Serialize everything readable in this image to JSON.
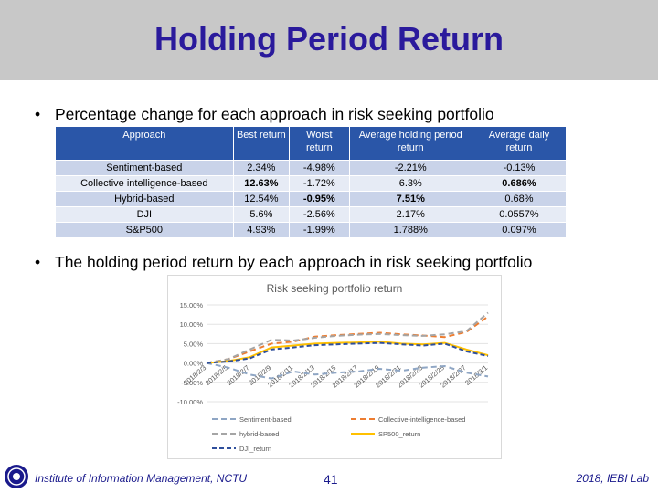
{
  "slide": {
    "title": "Holding Period Return",
    "bullet1": "Percentage change for each approach in risk seeking portfolio",
    "bullet2": "The holding period return by each approach in risk seeking portfolio",
    "bullet_glyph": "•"
  },
  "table": {
    "headers": [
      "Approach",
      "Best return",
      "Worst return",
      "Average holding period return",
      "Average daily return"
    ],
    "rows": [
      [
        "Sentiment-based",
        "2.34%",
        "-4.98%",
        "-2.21%",
        "-0.13%"
      ],
      [
        "Collective intelligence-based",
        "12.63%",
        "-1.72%",
        "6.3%",
        "0.686%"
      ],
      [
        "Hybrid-based",
        "12.54%",
        "-0.95%",
        "7.51%",
        "0.68%"
      ],
      [
        "DJI",
        "5.6%",
        "-2.56%",
        "2.17%",
        "0.0557%"
      ],
      [
        "S&P500",
        "4.93%",
        "-1.99%",
        "1.788%",
        "0.097%"
      ]
    ]
  },
  "chart_data": {
    "type": "line",
    "title": "Risk seeking portfolio return",
    "ylim": [
      -0.1,
      0.15
    ],
    "yticks": [
      "15.00%",
      "10.00%",
      "5.00%",
      "0.00%",
      "-5.00%",
      "-10.00%"
    ],
    "x": [
      "2018/2/3",
      "2018/2/5",
      "2018/2/7",
      "2018/2/9",
      "2018/2/11",
      "2018/2/13",
      "2018/2/15",
      "2018/2/17",
      "2018/2/19",
      "2018/2/21",
      "2018/2/23",
      "2018/2/25",
      "2018/2/27",
      "2018/3/1"
    ],
    "series": [
      {
        "name": "Sentiment-based",
        "color": "#8fa6c4",
        "dash": "6,4",
        "values": [
          0.0,
          -0.012,
          -0.03,
          -0.04,
          -0.022,
          -0.03,
          -0.025,
          -0.022,
          -0.015,
          -0.02,
          -0.012,
          -0.008,
          -0.025,
          -0.035
        ]
      },
      {
        "name": "Collective-intelligence-based",
        "color": "#ed7d31",
        "dash": "6,4",
        "values": [
          0.0,
          0.01,
          0.03,
          0.05,
          0.055,
          0.068,
          0.072,
          0.075,
          0.078,
          0.074,
          0.071,
          0.067,
          0.08,
          0.12
        ]
      },
      {
        "name": "hybrid-based",
        "color": "#a5a5a5",
        "dash": "6,4",
        "values": [
          0.0,
          0.01,
          0.035,
          0.06,
          0.058,
          0.065,
          0.07,
          0.073,
          0.075,
          0.072,
          0.07,
          0.074,
          0.082,
          0.13
        ]
      },
      {
        "name": "SP500_return",
        "color": "#ffc000",
        "dash": "",
        "values": [
          0.0,
          0.005,
          0.015,
          0.04,
          0.045,
          0.05,
          0.052,
          0.053,
          0.055,
          0.05,
          0.048,
          0.052,
          0.035,
          0.02
        ]
      },
      {
        "name": "DJI_return",
        "color": "#2f4f9c",
        "dash": "5,3",
        "values": [
          0.0,
          0.004,
          0.012,
          0.035,
          0.04,
          0.046,
          0.048,
          0.05,
          0.052,
          0.048,
          0.045,
          0.05,
          0.03,
          0.018
        ]
      }
    ]
  },
  "footer": {
    "institute": "Institute of Information Management, NCTU",
    "page": "41",
    "right": "2018, IEBI Lab"
  }
}
